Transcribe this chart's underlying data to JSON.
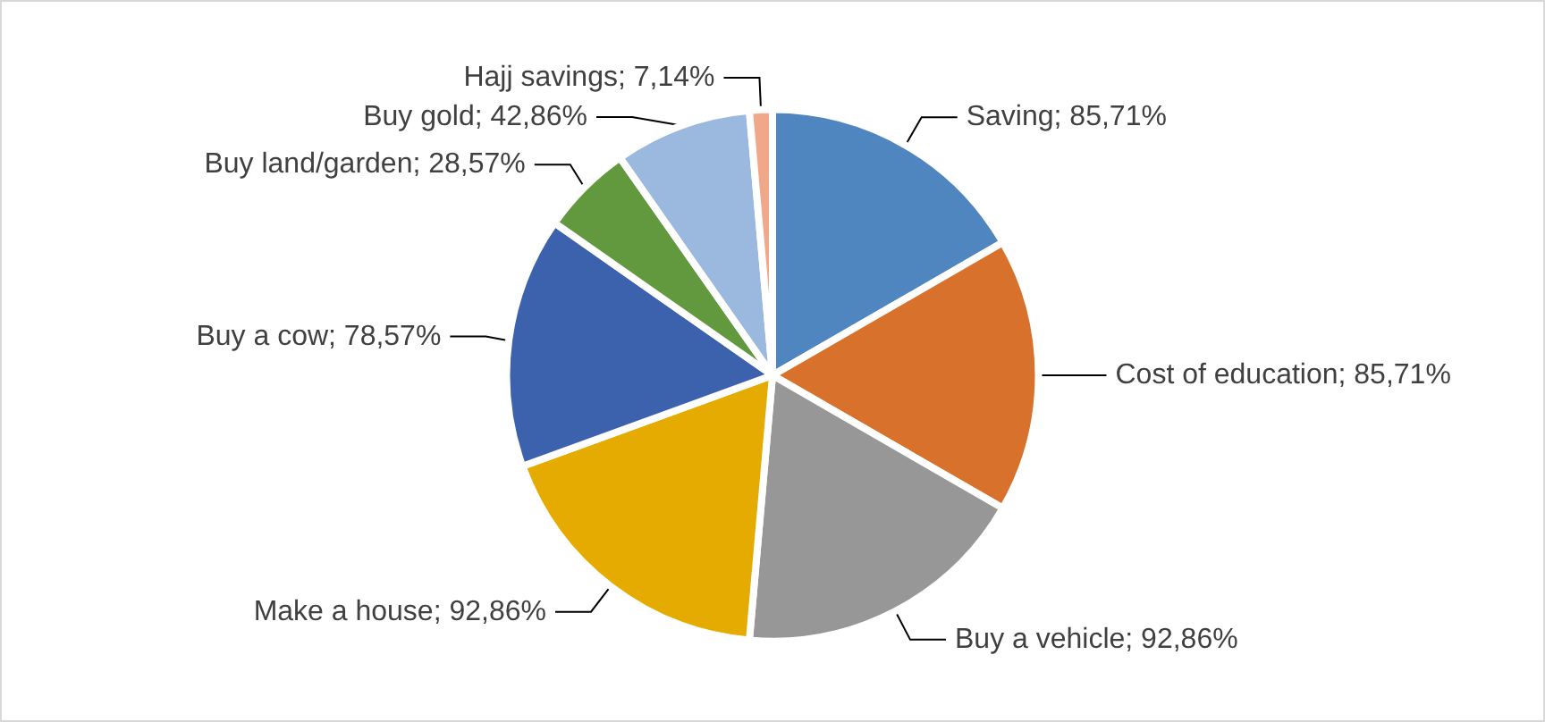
{
  "chart_data": {
    "type": "pie",
    "categories": [
      "Saving",
      "Cost of education",
      "Buy a vehicle",
      "Make a house",
      "Buy a cow",
      "Buy land/garden",
      "Buy gold",
      "Hajj savings"
    ],
    "values": [
      85.71,
      85.71,
      92.86,
      92.86,
      78.57,
      28.57,
      42.86,
      7.14
    ],
    "value_labels": [
      "85,71%",
      "85,71%",
      "92,86%",
      "92,86%",
      "78,57%",
      "28,57%",
      "42,86%",
      "7,14%"
    ],
    "colors": [
      "#4f86c0",
      "#d7712b",
      "#979797",
      "#e5ab00",
      "#3d62ad",
      "#62993e",
      "#9bb8df",
      "#f1a78a"
    ],
    "legend": false
  }
}
